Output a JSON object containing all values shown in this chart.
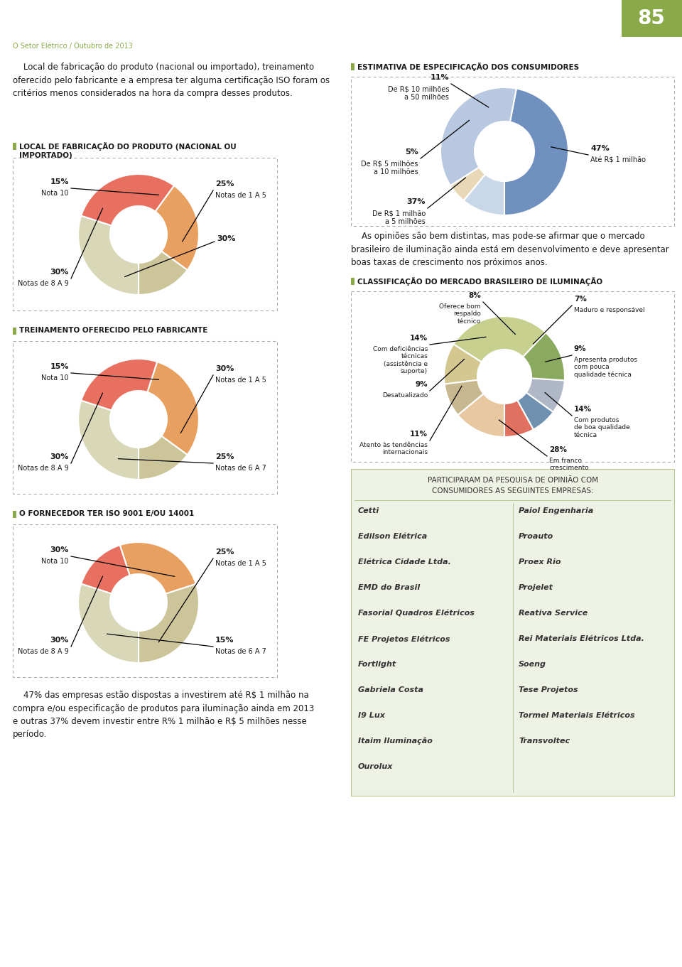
{
  "page_bg": "#ffffff",
  "header_text": "O Setor Elétrico / Outubro de 2013",
  "header_color": "#8aaa4a",
  "page_number": "85",
  "page_num_bg": "#8aaa4a",
  "intro_text": "    Local de fabricação do produto (nacional ou importado), treinamento\noferecido pelo fabricante e a empresa ter alguma certificação ISO foram os\ncritérios menos considerados na hora da compra desses produtos.",
  "chart1_title": "LOCAL DE FABRICAÇÃO DO PRODUTO (NACIONAL OU\nIMPORTADO)",
  "chart1_values": [
    15,
    25,
    30,
    30
  ],
  "chart1_colors": [
    "#ccc59a",
    "#e8a060",
    "#e87060",
    "#d8d8b8"
  ],
  "chart2_title": "ESTIMATIVA DE ESPECIFICAÇÃO DOS CONSUMIDORES",
  "chart2_values": [
    47,
    37,
    5,
    11
  ],
  "chart2_colors": [
    "#7090c0",
    "#b8c8e0",
    "#e8d8b8",
    "#c8d8e8"
  ],
  "chart3_title": "TREINAMENTO OFERECIDO PELO FABRICANTE",
  "chart3_values": [
    15,
    30,
    25,
    30
  ],
  "chart3_colors": [
    "#ccc59a",
    "#e8a060",
    "#e87060",
    "#d8d8b8"
  ],
  "chart4_title": "CLASSIFICAÇÃO DO MERCADO BRASILEIRO DE ILUMINAÇÃO",
  "chart4_values": [
    8,
    7,
    9,
    14,
    28,
    11,
    9,
    14
  ],
  "chart4_colors": [
    "#e07060",
    "#7090b0",
    "#b0b8c8",
    "#8aaa60",
    "#c8d090",
    "#d4c890",
    "#c8b890",
    "#e8c8a0"
  ],
  "chart5_title": "O FORNECEDOR TER ISO 9001 E/OU 14001",
  "chart5_values": [
    30,
    25,
    15,
    30
  ],
  "chart5_colors": [
    "#ccc59a",
    "#e8a060",
    "#e87060",
    "#d8d8b8"
  ],
  "bottom_text": "    47% das empresas estão dispostas a investirem até R$ 1 milhão na\ncompra e/ou especificação de produtos para iluminação ainda em 2013\ne outras 37% devem investir entre R% 1 milhão e R$ 5 milhões nesse\nperíodo.",
  "opinion_text": "    As opiniões são bem distintas, mas pode-se afirmar que o mercado\nbrasileiro de iluminação ainda está em desenvolvimento e deve apresentar\nboas taxas de crescimento nos próximos anos.",
  "box_title1": "Participaram da pesquisa de opinião com",
  "box_title2": "consumidores as seguintes empresas:",
  "companies_left": [
    "Cetti",
    "Edilson Elétrica",
    "Elétrica Cidade Ltda.",
    "EMD do Brasil",
    "Fasorial Quadros Elétricos",
    "FE Projetos Elétricos",
    "Fortlight",
    "Gabriela Costa",
    "I9 Lux",
    "Itaim Iluminação",
    "Ourolux"
  ],
  "companies_right": [
    "Paiol Engenharia",
    "Proauto",
    "Proex Rio",
    "Projelet",
    "Reativa Service",
    "Rei Materiais Elétricos Ltda.",
    "Soeng",
    "Tese Projetos",
    "Tormel Materiais Elétricos",
    "Transvoltec"
  ]
}
